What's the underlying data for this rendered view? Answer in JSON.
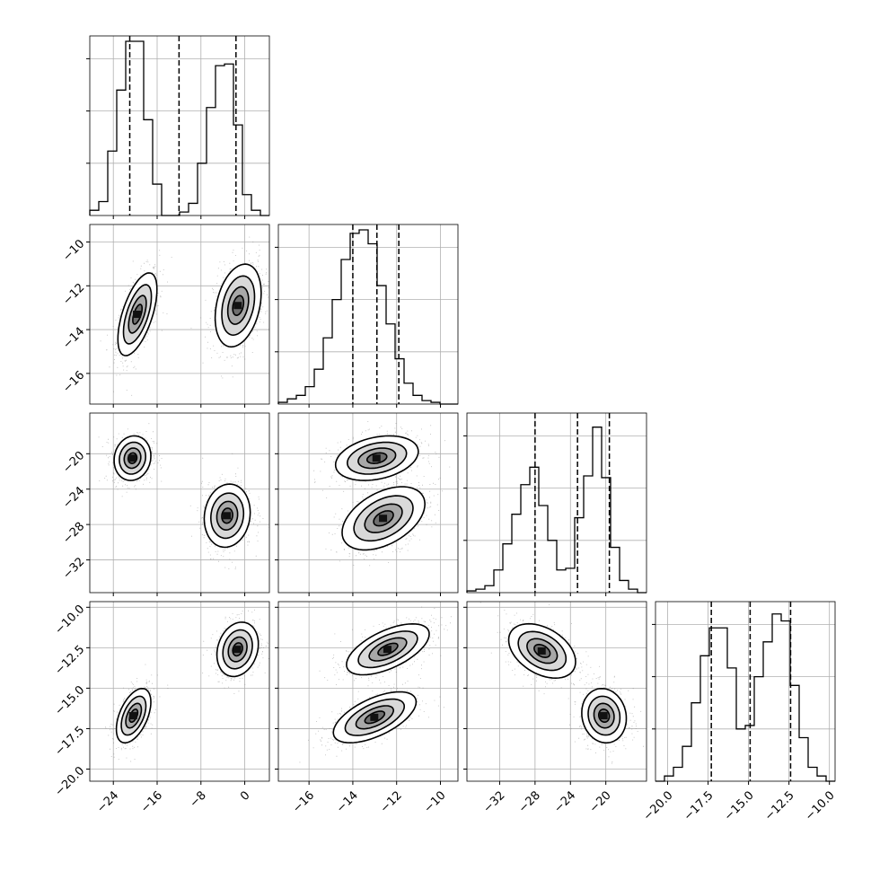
{
  "chart_data": {
    "type": "corner",
    "title": "",
    "params": [
      {
        "range": [
          -28.3,
          4.5
        ],
        "ticks": [
          -24,
          -16,
          -8,
          0
        ],
        "quantiles": [
          -21.0,
          -12.0,
          -1.6
        ],
        "hist": [
          0.03,
          0.08,
          0.37,
          0.72,
          1.0,
          1.0,
          0.55,
          0.18,
          0.0,
          0.0,
          0.02,
          0.07,
          0.3,
          0.62,
          0.86,
          0.87,
          0.52,
          0.12,
          0.03,
          0.0
        ]
      },
      {
        "range": [
          -17.4,
          -9.2
        ],
        "ticks": [
          -16,
          -14,
          -12,
          -10
        ],
        "quantiles": [
          -14.0,
          -12.9,
          -11.9
        ],
        "hist": [
          0.01,
          0.03,
          0.05,
          0.1,
          0.2,
          0.38,
          0.6,
          0.83,
          0.98,
          1.0,
          0.92,
          0.68,
          0.46,
          0.26,
          0.12,
          0.05,
          0.02,
          0.01,
          0.0,
          0.0
        ]
      },
      {
        "range": [
          -35.7,
          -15.4
        ],
        "ticks": [
          -32,
          -28,
          -24,
          -20
        ],
        "quantiles": [
          -28.0,
          -23.2,
          -19.6
        ],
        "hist": [
          0.01,
          0.02,
          0.04,
          0.13,
          0.28,
          0.45,
          0.62,
          0.72,
          0.5,
          0.3,
          0.13,
          0.14,
          0.43,
          0.67,
          0.95,
          0.66,
          0.26,
          0.07,
          0.02,
          0.0
        ]
      },
      {
        "range": [
          -20.75,
          -9.65
        ],
        "ticks": [
          -20.0,
          -17.5,
          -15.0,
          -12.5,
          -10.0
        ],
        "quantiles": [
          -17.3,
          -14.9,
          -12.4
        ],
        "hist": [
          0.0,
          0.03,
          0.08,
          0.2,
          0.45,
          0.72,
          0.88,
          0.88,
          0.65,
          0.3,
          0.32,
          0.6,
          0.8,
          0.96,
          0.92,
          0.55,
          0.25,
          0.08,
          0.03,
          0.0
        ]
      }
    ],
    "pairs": [
      {
        "row": 1,
        "col": 0,
        "ylim": [
          -17.4,
          -9.2
        ],
        "yticks": [
          -16,
          -14,
          -12,
          -10
        ],
        "clusters": [
          {
            "x": -19.6,
            "y": -13.3,
            "sx": 1.7,
            "sy": 0.9,
            "rho": 0.6
          },
          {
            "x": -1.2,
            "y": -12.9,
            "sx": 2.0,
            "sy": 0.9,
            "rho": 0.3
          }
        ]
      },
      {
        "row": 2,
        "col": 0,
        "ylim": [
          -35.7,
          -15.4
        ],
        "yticks": [
          -32,
          -28,
          -24,
          -20
        ],
        "clusters": [
          {
            "x": -20.5,
            "y": -20.5,
            "sx": 1.6,
            "sy": 1.2,
            "rho": 0.1
          },
          {
            "x": -3.2,
            "y": -27.0,
            "sx": 2.0,
            "sy": 1.7,
            "rho": 0.1
          }
        ]
      },
      {
        "row": 2,
        "col": 1,
        "ylim": [
          -35.7,
          -15.4
        ],
        "yticks": [],
        "clusters": [
          {
            "x": -12.9,
            "y": -20.5,
            "sx": 0.9,
            "sy": 1.2,
            "rho": 0.3
          },
          {
            "x": -12.6,
            "y": -27.3,
            "sx": 0.9,
            "sy": 1.7,
            "rho": 0.45
          }
        ]
      },
      {
        "row": 3,
        "col": 0,
        "ylim": [
          -20.75,
          -9.65
        ],
        "yticks": [
          -20.0,
          -17.5,
          -15.0,
          -12.5,
          -10.0
        ],
        "clusters": [
          {
            "x": -20.3,
            "y": -16.7,
            "sx": 1.5,
            "sy": 0.8,
            "rho": 0.5
          },
          {
            "x": -1.3,
            "y": -12.6,
            "sx": 1.8,
            "sy": 0.8,
            "rho": 0.2
          }
        ]
      },
      {
        "row": 3,
        "col": 1,
        "ylim": [
          -20.75,
          -9.65
        ],
        "yticks": [],
        "clusters": [
          {
            "x": -12.4,
            "y": -12.6,
            "sx": 0.9,
            "sy": 0.75,
            "rho": 0.6
          },
          {
            "x": -13.0,
            "y": -16.8,
            "sx": 0.9,
            "sy": 0.75,
            "rho": 0.6
          }
        ]
      },
      {
        "row": 3,
        "col": 2,
        "ylim": [
          -20.75,
          -9.65
        ],
        "yticks": [],
        "clusters": [
          {
            "x": -27.2,
            "y": -12.7,
            "sx": 1.8,
            "sy": 0.8,
            "rho": -0.4
          },
          {
            "x": -20.2,
            "y": -16.7,
            "sx": 1.2,
            "sy": 0.8,
            "rho": -0.1
          }
        ]
      }
    ],
    "grid": true,
    "legend": "none"
  }
}
